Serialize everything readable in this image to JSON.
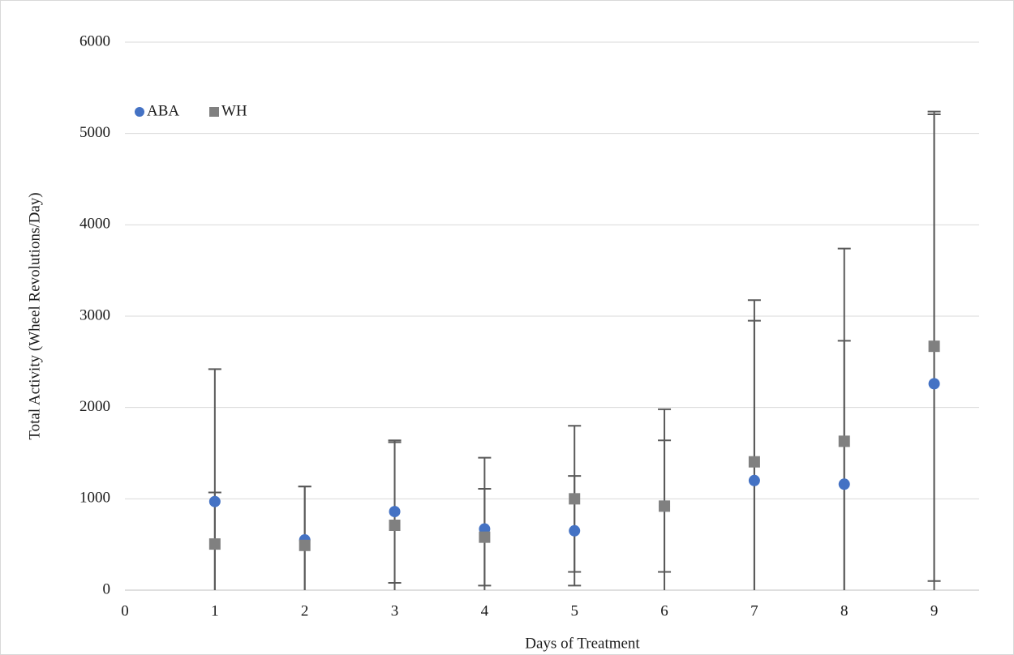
{
  "chart_data": {
    "type": "scatter",
    "x_label": "Days of Treatment",
    "y_label": "Total Activity (Wheel Revolutions/Day)",
    "x": [
      1,
      2,
      3,
      4,
      5,
      6,
      7,
      8,
      9
    ],
    "series": [
      {
        "name": "ABA",
        "color": "#4472c4",
        "marker": "circle",
        "values": [
          970,
          550,
          860,
          670,
          650,
          920,
          1200,
          1160,
          2260
        ],
        "errors": [
          1450,
          585,
          780,
          780,
          600,
          720,
          1750,
          1570,
          2950
        ]
      },
      {
        "name": "WH",
        "color": "#808080",
        "marker": "square",
        "values": [
          505,
          490,
          710,
          580,
          1000,
          920,
          1405,
          1630,
          2670
        ],
        "errors": [
          565,
          645,
          910,
          530,
          800,
          1060,
          1770,
          2110,
          2570
        ]
      }
    ],
    "error_color": "#595959",
    "xlim": [
      0,
      9.5
    ],
    "xticks": [
      0,
      1,
      2,
      3,
      4,
      5,
      6,
      7,
      8,
      9
    ],
    "ylim": [
      0,
      6000
    ],
    "yticks": [
      0,
      1000,
      2000,
      3000,
      4000,
      5000,
      6000
    ],
    "grid": true,
    "legend": "top-left"
  }
}
